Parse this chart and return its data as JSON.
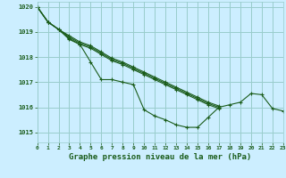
{
  "title": "Graphe pression niveau de la mer (hPa)",
  "bg_color": "#cceeff",
  "grid_color": "#99cccc",
  "line_color": "#1a5c1a",
  "xlim": [
    0,
    23
  ],
  "ylim": [
    1014.6,
    1020.2
  ],
  "yticks": [
    1015,
    1016,
    1017,
    1018,
    1019,
    1020
  ],
  "xticks": [
    0,
    1,
    2,
    3,
    4,
    5,
    6,
    7,
    8,
    9,
    10,
    11,
    12,
    13,
    14,
    15,
    16,
    17,
    18,
    19,
    20,
    21,
    22,
    23
  ],
  "series": [
    {
      "x": [
        0,
        1,
        2,
        3,
        4,
        5,
        6,
        7,
        8,
        9,
        10,
        11,
        12,
        13,
        14,
        15,
        16,
        17,
        18,
        19,
        20,
        21,
        22,
        23
      ],
      "y": [
        1020.0,
        1019.4,
        1019.1,
        1018.7,
        1018.5,
        1017.8,
        1017.1,
        1017.1,
        1017.0,
        1016.9,
        1015.9,
        1015.65,
        1015.5,
        1015.3,
        1015.2,
        1015.2,
        1015.6,
        1016.0,
        1016.1,
        1016.2,
        1016.55,
        1016.5,
        1015.95,
        1015.85
      ]
    },
    {
      "x": [
        0,
        1,
        2,
        3,
        4,
        5,
        6,
        7,
        8,
        9,
        10,
        11,
        12,
        13,
        14,
        15,
        16,
        17
      ],
      "y": [
        1020.0,
        1019.4,
        1019.1,
        1018.75,
        1018.5,
        1018.35,
        1018.1,
        1017.85,
        1017.7,
        1017.5,
        1017.3,
        1017.1,
        1016.9,
        1016.7,
        1016.5,
        1016.3,
        1016.1,
        1015.95
      ]
    },
    {
      "x": [
        0,
        1,
        2,
        3,
        4,
        5,
        6,
        7,
        8,
        9,
        10,
        11,
        12,
        13,
        14,
        15,
        16,
        17
      ],
      "y": [
        1020.0,
        1019.4,
        1019.1,
        1018.8,
        1018.55,
        1018.4,
        1018.15,
        1017.9,
        1017.75,
        1017.55,
        1017.35,
        1017.15,
        1016.95,
        1016.75,
        1016.55,
        1016.35,
        1016.15,
        1016.0
      ]
    },
    {
      "x": [
        0,
        1,
        2,
        3,
        4,
        5,
        6,
        7,
        8,
        9,
        10,
        11,
        12,
        13,
        14,
        15,
        16,
        17
      ],
      "y": [
        1020.0,
        1019.4,
        1019.1,
        1018.85,
        1018.6,
        1018.45,
        1018.2,
        1017.95,
        1017.8,
        1017.6,
        1017.4,
        1017.2,
        1017.0,
        1016.8,
        1016.6,
        1016.4,
        1016.2,
        1016.05
      ]
    }
  ]
}
